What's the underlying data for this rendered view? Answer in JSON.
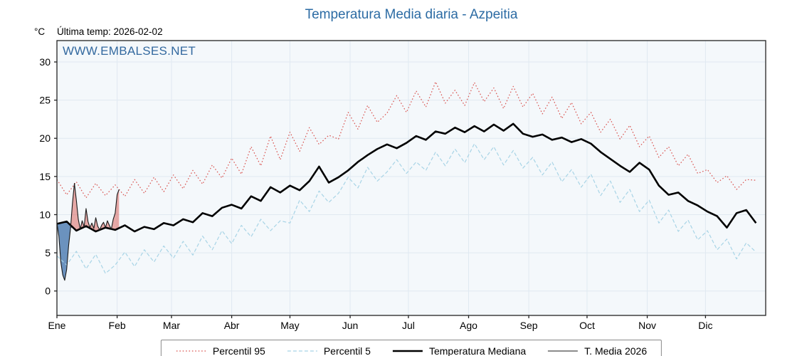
{
  "chart_data": {
    "type": "line",
    "title": "Temperatura Media diaria - Azpeitia",
    "unit_label": "°C",
    "last_temp_label": "Última temp: 2026-02-02",
    "watermark": "WWW.EMBALSES.NET",
    "ylim": [
      -3.2,
      32.8
    ],
    "xlim": [
      1,
      366
    ],
    "yticks": [
      0,
      5,
      10,
      15,
      20,
      25,
      30
    ],
    "xticks": {
      "days": [
        1,
        32,
        60,
        91,
        121,
        152,
        182,
        213,
        244,
        274,
        305,
        335
      ],
      "labels": [
        "Ene",
        "Feb",
        "Mar",
        "Abr",
        "May",
        "Jun",
        "Jul",
        "Ago",
        "Sep",
        "Oct",
        "Nov",
        "Dic"
      ]
    },
    "plot_bg": "#f4f8fb",
    "grid_color": "#e0e9f1",
    "fills": {
      "above_color": "rgba(219,102,97,0.55)",
      "below_color": "rgba(62,112,170,0.75)"
    },
    "x": [
      1,
      6,
      11,
      16,
      21,
      26,
      31,
      36,
      41,
      46,
      51,
      56,
      61,
      66,
      71,
      76,
      81,
      86,
      91,
      96,
      101,
      106,
      111,
      116,
      121,
      126,
      131,
      136,
      141,
      146,
      151,
      156,
      161,
      166,
      171,
      176,
      181,
      186,
      191,
      196,
      201,
      206,
      211,
      216,
      221,
      226,
      231,
      236,
      241,
      246,
      251,
      256,
      261,
      266,
      271,
      276,
      281,
      286,
      291,
      296,
      301,
      306,
      311,
      316,
      321,
      326,
      331,
      336,
      341,
      346,
      351,
      356,
      361
    ],
    "series": [
      {
        "key": "p95",
        "name": "Percentil 95",
        "color": "#d9534f",
        "style": "dotted",
        "width": 1.2,
        "values": [
          14.6,
          12.6,
          14.3,
          12.2,
          14.1,
          12.5,
          13.9,
          12.4,
          14.6,
          12.8,
          14.9,
          13.0,
          15.2,
          13.4,
          15.8,
          14.0,
          16.5,
          14.8,
          17.4,
          15.3,
          18.9,
          16.4,
          20.3,
          17.2,
          20.8,
          18.3,
          21.4,
          19.2,
          20.4,
          19.9,
          23.4,
          21.2,
          24.3,
          22.1,
          23.3,
          25.6,
          23.4,
          26.2,
          24.1,
          27.4,
          24.6,
          26.3,
          24.3,
          27.3,
          24.8,
          26.6,
          23.9,
          26.8,
          24.1,
          25.9,
          23.2,
          25.4,
          22.6,
          24.7,
          21.9,
          23.4,
          20.8,
          22.5,
          19.9,
          21.7,
          18.9,
          20.3,
          17.5,
          18.9,
          16.4,
          17.9,
          15.4,
          15.9,
          14.2,
          15.1,
          13.3,
          14.6,
          14.5
        ]
      },
      {
        "key": "p5",
        "name": "Percentil 5",
        "color": "#a8d4e6",
        "style": "dashed",
        "width": 1.2,
        "values": [
          4.6,
          3.4,
          5.2,
          2.9,
          4.8,
          2.3,
          3.4,
          5.1,
          3.2,
          5.4,
          3.8,
          5.9,
          4.3,
          6.5,
          4.7,
          7.2,
          5.4,
          7.9,
          6.2,
          8.6,
          7.1,
          9.4,
          7.9,
          9.2,
          8.9,
          11.9,
          10.4,
          13.1,
          11.6,
          12.8,
          14.9,
          13.5,
          16.2,
          14.4,
          15.6,
          17.2,
          15.4,
          16.9,
          15.8,
          18.2,
          16.4,
          18.6,
          16.8,
          19.3,
          17.2,
          18.9,
          16.5,
          18.4,
          16.1,
          17.5,
          15.2,
          16.9,
          14.3,
          15.9,
          13.6,
          15.3,
          12.5,
          14.4,
          11.6,
          13.3,
          10.4,
          11.9,
          8.9,
          10.6,
          7.8,
          9.3,
          6.7,
          7.9,
          5.4,
          6.8,
          4.2,
          6.3,
          5.1
        ]
      },
      {
        "key": "mediana",
        "name": "Temperatura Mediana",
        "color": "#000000",
        "style": "solid",
        "width": 2.6,
        "values": [
          8.8,
          9.1,
          7.9,
          8.5,
          7.8,
          8.3,
          8.0,
          8.6,
          7.8,
          8.4,
          8.1,
          8.9,
          8.6,
          9.4,
          9.0,
          10.2,
          9.8,
          10.9,
          11.3,
          10.8,
          12.4,
          11.8,
          13.6,
          12.9,
          13.8,
          13.2,
          14.4,
          16.3,
          14.2,
          14.9,
          15.8,
          16.9,
          17.8,
          18.6,
          19.2,
          18.7,
          19.4,
          20.3,
          19.8,
          20.9,
          20.6,
          21.4,
          20.8,
          21.6,
          20.9,
          21.8,
          21.0,
          21.9,
          20.6,
          20.2,
          20.5,
          19.8,
          20.1,
          19.5,
          19.9,
          19.3,
          18.2,
          17.3,
          16.4,
          15.6,
          16.8,
          15.9,
          13.8,
          12.6,
          12.9,
          11.8,
          11.2,
          10.4,
          9.8,
          8.3,
          10.2,
          10.6,
          8.9
        ]
      },
      {
        "key": "media2026",
        "name": "T. Media 2026",
        "color": "#1a1a1a",
        "style": "solid",
        "width": 1.1,
        "x": [
          1,
          2,
          3,
          4,
          5,
          6,
          7,
          8,
          9,
          10,
          11,
          12,
          13,
          14,
          15,
          16,
          17,
          18,
          19,
          20,
          21,
          22,
          23,
          24,
          25,
          26,
          27,
          28,
          29,
          30,
          31,
          32,
          33
        ],
        "values": [
          8.9,
          7.2,
          3.8,
          2.1,
          1.4,
          2.8,
          5.9,
          8.2,
          11.5,
          14.1,
          11.9,
          9.4,
          8.1,
          9.2,
          8.4,
          10.8,
          9.1,
          8.3,
          8.9,
          8.2,
          9.6,
          8.5,
          8.0,
          8.6,
          9.0,
          8.3,
          9.2,
          8.6,
          8.1,
          9.4,
          10.2,
          12.6,
          13.3
        ]
      }
    ]
  }
}
